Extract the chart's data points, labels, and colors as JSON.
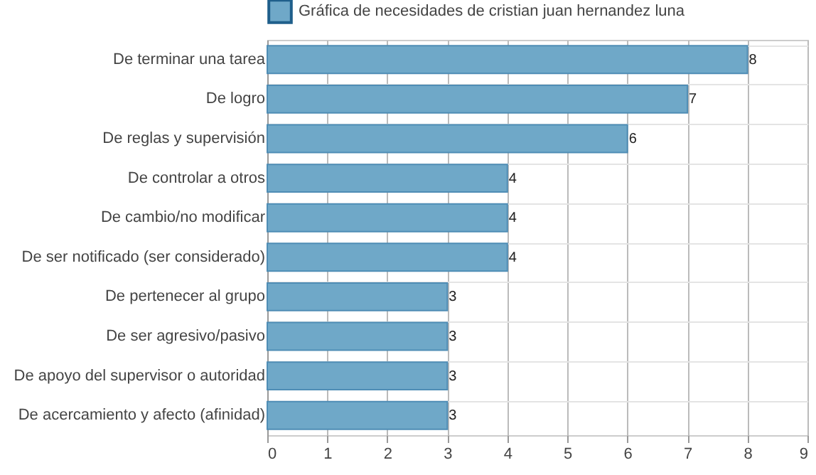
{
  "chart_data": {
    "type": "bar",
    "orientation": "horizontal",
    "categories": [
      "De terminar una tarea",
      "De logro",
      "De reglas y supervisión",
      "De controlar a otros",
      "De cambio/no modificar",
      "De ser notificado (ser considerado)",
      "De pertenecer al grupo",
      "De ser agresivo/pasivo",
      "De apoyo del supervisor o autoridad",
      "De acercamiento y afecto (afinidad)"
    ],
    "series": [
      {
        "name": "Gráfica de necesidades de cristian juan hernandez luna",
        "color": "#6fa8c8",
        "values": [
          8,
          7,
          6,
          4,
          4,
          4,
          3,
          3,
          3,
          3
        ]
      }
    ],
    "xlim": [
      0,
      9
    ],
    "xticks": [
      0,
      1,
      2,
      3,
      4,
      5,
      6,
      7,
      8,
      9
    ],
    "grid": true,
    "legend": "top",
    "data_labels": true
  }
}
